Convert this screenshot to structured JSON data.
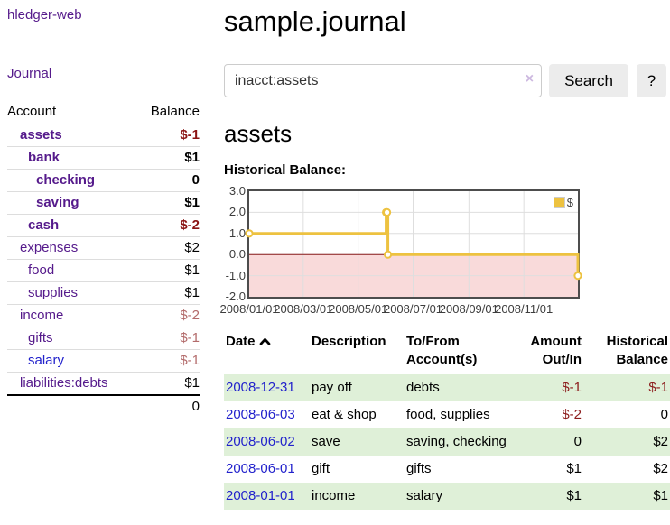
{
  "app": {
    "brand": "hledger-web",
    "nav_journal": "Journal"
  },
  "sidebar": {
    "col_account": "Account",
    "col_balance": "Balance",
    "accounts": [
      {
        "name": "assets",
        "balance": "$-1",
        "level": 0,
        "bold": true,
        "neg": "strong",
        "link": "purple"
      },
      {
        "name": "bank",
        "balance": "$1",
        "level": 1,
        "bold": true,
        "neg": null,
        "link": "purple"
      },
      {
        "name": "checking",
        "balance": "0",
        "level": 2,
        "bold": true,
        "neg": null,
        "link": "purple"
      },
      {
        "name": "saving",
        "balance": "$1",
        "level": 2,
        "bold": true,
        "neg": null,
        "link": "purple"
      },
      {
        "name": "cash",
        "balance": "$-2",
        "level": 1,
        "bold": true,
        "neg": "strong",
        "link": "purple"
      },
      {
        "name": "expenses",
        "balance": "$2",
        "level": 0,
        "bold": false,
        "neg": null,
        "link": "purple"
      },
      {
        "name": "food",
        "balance": "$1",
        "level": 1,
        "bold": false,
        "neg": null,
        "link": "purple"
      },
      {
        "name": "supplies",
        "balance": "$1",
        "level": 1,
        "bold": false,
        "neg": null,
        "link": "purple"
      },
      {
        "name": "income",
        "balance": "$-2",
        "level": 0,
        "bold": false,
        "neg": "soft",
        "link": "purple"
      },
      {
        "name": "gifts",
        "balance": "$-1",
        "level": 1,
        "bold": false,
        "neg": "soft",
        "link": "purple"
      },
      {
        "name": "salary",
        "balance": "$-1",
        "level": 1,
        "bold": false,
        "neg": "soft",
        "link": "blue"
      },
      {
        "name": "liabilities:debts",
        "balance": "$1",
        "level": 0,
        "bold": false,
        "neg": null,
        "link": "purple"
      }
    ],
    "total": "0"
  },
  "header": {
    "title": "sample.journal",
    "search_value": "inacct:assets",
    "clear_icon": "×",
    "search_button": "Search",
    "help_button": "?"
  },
  "account_page": {
    "title": "assets",
    "chart_label": "Historical Balance:"
  },
  "chart_data": {
    "type": "line",
    "title": "Historical Balance",
    "steps": true,
    "x_start": "2008-01-01",
    "x_end": "2008-12-31",
    "ylim": [
      -2,
      3
    ],
    "y_ticks": [
      "3.0",
      "2.0",
      "1.0",
      "0.0",
      "-1.0",
      "-2.0"
    ],
    "x_ticks": [
      "2008/01/01",
      "2008/03/01",
      "2008/05/01",
      "2008/07/01",
      "2008/09/01",
      "2008/11/01"
    ],
    "grid": true,
    "legend": {
      "label": "$",
      "position": "top-right"
    },
    "series": [
      {
        "name": "$",
        "color": "#edc240",
        "points": [
          {
            "x": "2008-01-01",
            "y": 1
          },
          {
            "x": "2008-06-01",
            "y": 2
          },
          {
            "x": "2008-06-02",
            "y": 2
          },
          {
            "x": "2008-06-03",
            "y": 0
          },
          {
            "x": "2008-12-31",
            "y": -1
          }
        ]
      }
    ],
    "colors": {
      "grid": "#dedede",
      "border": "#4d4d4d",
      "negative_region": "#f9dada",
      "zero_line": "#8b1a1a",
      "marker_fill": "#ffffff"
    }
  },
  "register": {
    "headers": {
      "date": "Date",
      "description": "Description",
      "accounts": "To/From Account(s)",
      "amount": "Amount Out/In",
      "balance": "Historical Balance"
    },
    "sort": "ascending",
    "transactions": [
      {
        "date": "2008-12-31",
        "description": "pay off",
        "accounts": "debts",
        "amount": "$-1",
        "amount_neg": true,
        "balance": "$-1",
        "balance_neg": true
      },
      {
        "date": "2008-06-03",
        "description": "eat & shop",
        "accounts": "food, supplies",
        "amount": "$-2",
        "amount_neg": true,
        "balance": "0",
        "balance_neg": false
      },
      {
        "date": "2008-06-02",
        "description": "save",
        "accounts": "saving, checking",
        "amount": "0",
        "amount_neg": false,
        "balance": "$2",
        "balance_neg": false
      },
      {
        "date": "2008-06-01",
        "description": "gift",
        "accounts": "gifts",
        "amount": "$1",
        "amount_neg": false,
        "balance": "$2",
        "balance_neg": false
      },
      {
        "date": "2008-01-01",
        "description": "income",
        "accounts": "salary",
        "amount": "$1",
        "amount_neg": false,
        "balance": "$1",
        "balance_neg": false
      }
    ]
  }
}
